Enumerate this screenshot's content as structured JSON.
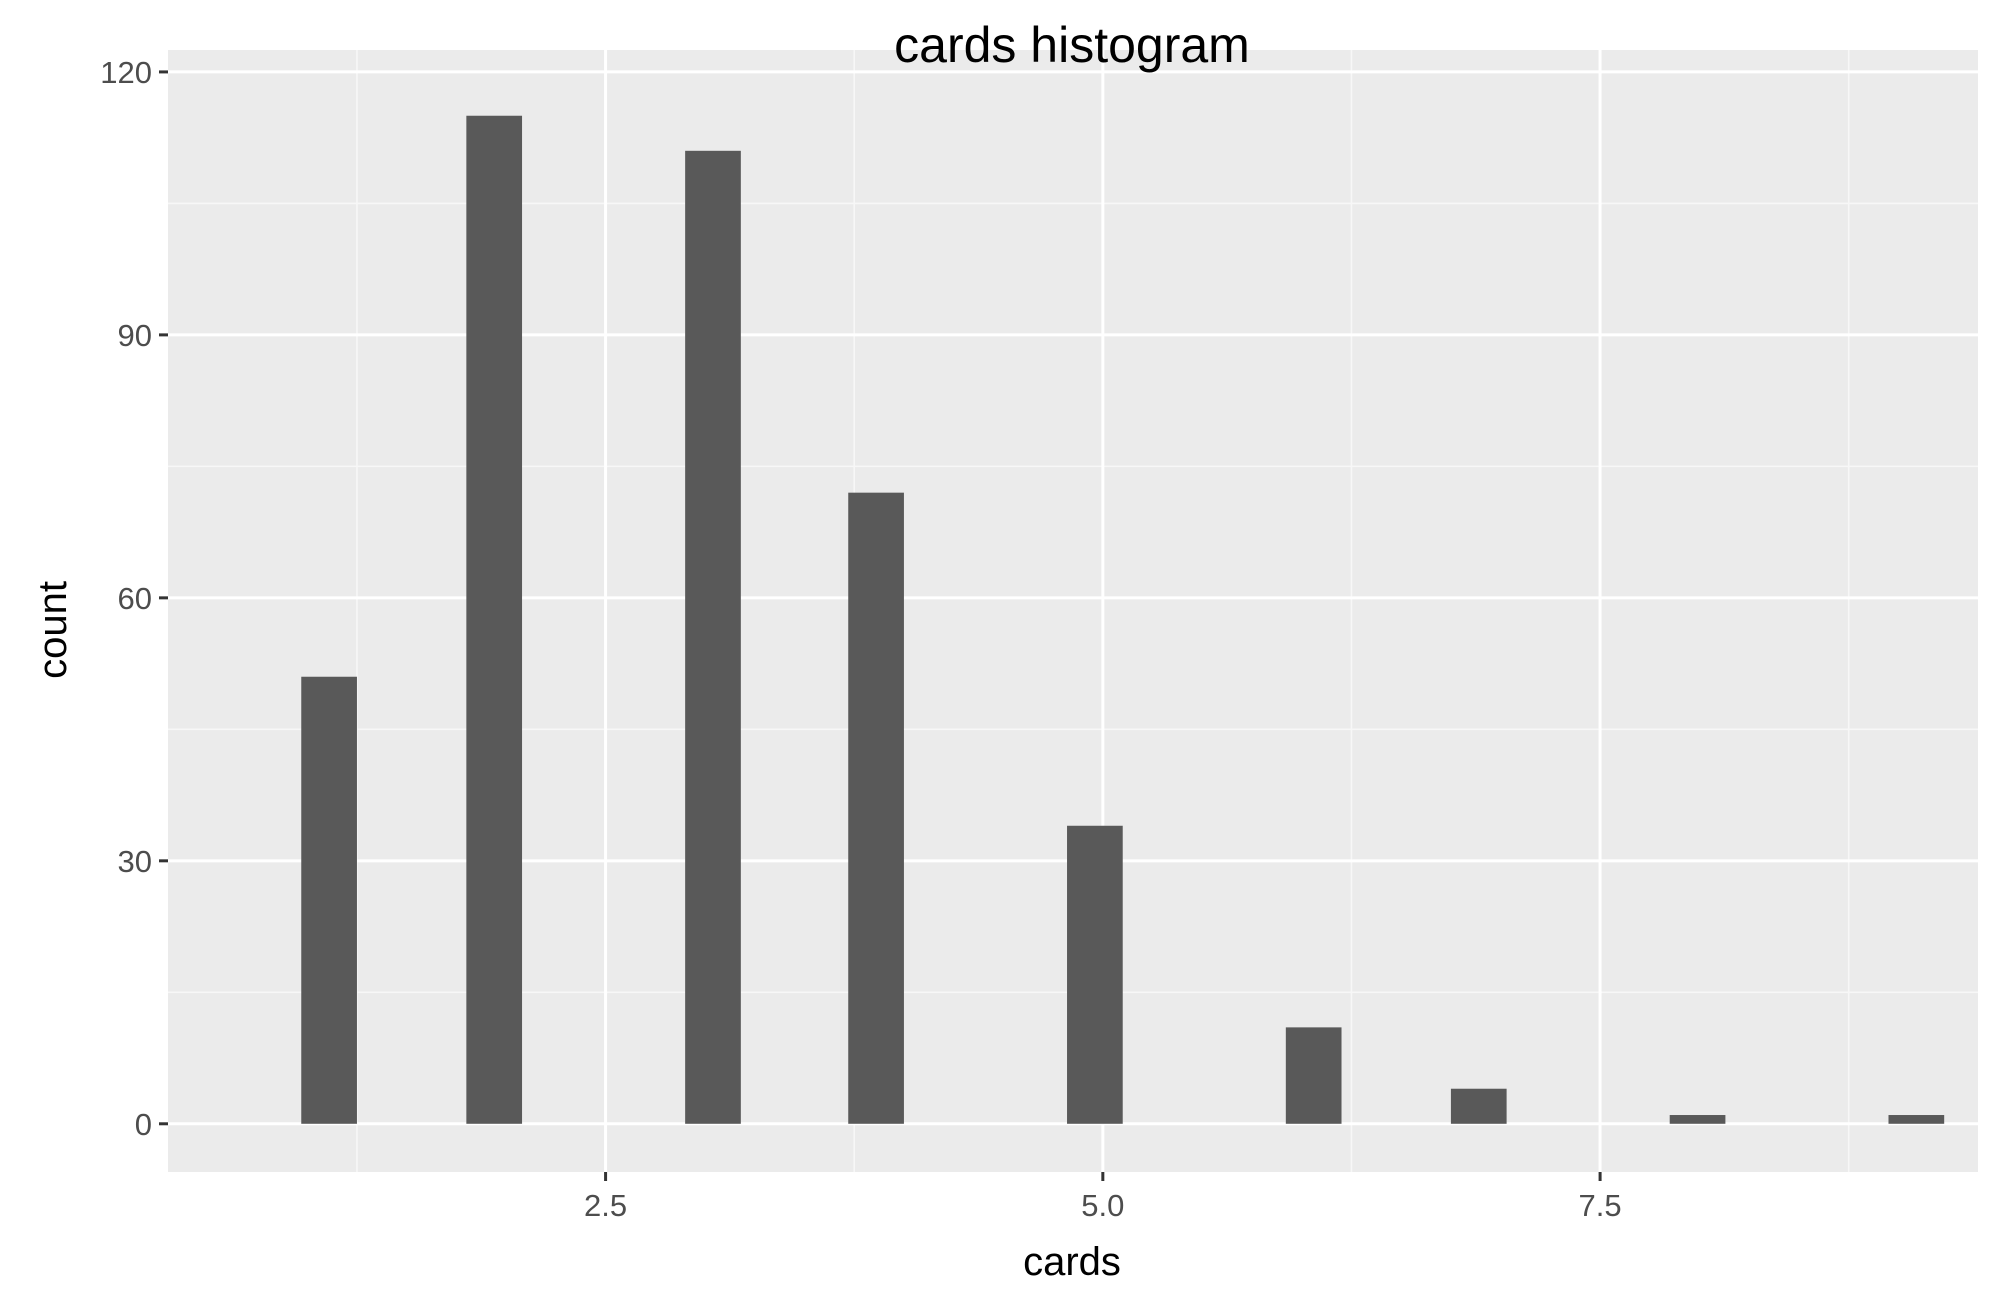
{
  "chart_data": {
    "type": "bar",
    "title": "cards histogram",
    "xlabel": "cards",
    "ylabel": "count",
    "x": [
      1.11,
      1.94,
      3.04,
      3.86,
      4.96,
      6.06,
      6.89,
      7.99,
      9.09
    ],
    "values": [
      51,
      115,
      111,
      72,
      34,
      11,
      4,
      1,
      1
    ],
    "bin_width": 0.28,
    "xlim": [
      0.3,
      9.4
    ],
    "ylim": [
      -5.5,
      122.5
    ],
    "x_ticks": [
      2.5,
      5.0,
      7.5
    ],
    "x_tick_labels": [
      "2.5",
      "5.0",
      "7.5"
    ],
    "y_ticks": [
      0,
      30,
      60,
      90,
      120
    ],
    "y_tick_labels": [
      "0",
      "30",
      "60",
      "90",
      "120"
    ],
    "grid": true,
    "legend": "none",
    "colors": {
      "bar": "#595959",
      "panel": "#ebebeb",
      "grid_major": "#ffffff",
      "grid_minor": "#f7f7f7"
    }
  }
}
